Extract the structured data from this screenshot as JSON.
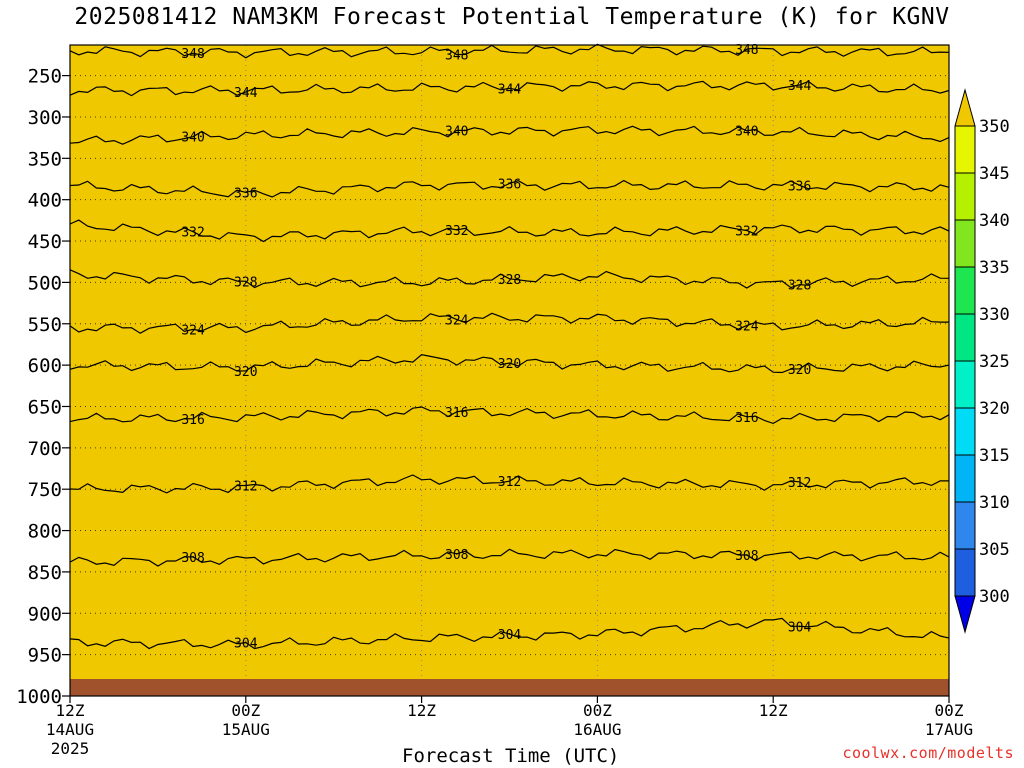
{
  "title": "2025081412 NAM3KM Forecast Potential Temperature (K) for KGNV",
  "credit": "coolwx.com/modelts",
  "chart_data": {
    "type": "heatmap",
    "title": "2025081412 NAM3KM Forecast Potential Temperature (K) for KGNV",
    "xlabel": "Forecast Time (UTC)",
    "ylabel": "",
    "ylim": [
      1000,
      200
    ],
    "xlim_hours": [
      0,
      60
    ],
    "y_ticks": [
      250,
      300,
      350,
      400,
      450,
      500,
      550,
      600,
      650,
      700,
      750,
      800,
      850,
      900,
      950,
      1000
    ],
    "x_ticks": [
      {
        "hour": 0,
        "lines": [
          "12Z",
          "14AUG",
          "2025"
        ]
      },
      {
        "hour": 12,
        "lines": [
          "00Z",
          "15AUG"
        ]
      },
      {
        "hour": 24,
        "lines": [
          "12Z"
        ]
      },
      {
        "hour": 36,
        "lines": [
          "00Z",
          "16AUG"
        ]
      },
      {
        "hour": 48,
        "lines": [
          "12Z"
        ]
      },
      {
        "hour": 60,
        "lines": [
          "00Z",
          "17AUG"
        ]
      }
    ],
    "colorbar": {
      "levels": [
        300,
        305,
        310,
        315,
        320,
        325,
        330,
        335,
        340,
        345,
        350
      ],
      "colors": [
        "#0000e6",
        "#1e5fe0",
        "#2f86ec",
        "#00b4f5",
        "#00dcf5",
        "#00f0c8",
        "#00e682",
        "#1ee650",
        "#82e61e",
        "#b4f000",
        "#e6f500",
        "#ffff00",
        "#f0c800"
      ],
      "extend": "both"
    },
    "series": [
      {
        "name": "348",
        "level": 348,
        "values": [
          {
            "p": 220,
            "t": 0
          },
          {
            "p": 222,
            "t": 12
          },
          {
            "p": 221,
            "t": 24
          },
          {
            "p": 218,
            "t": 36
          },
          {
            "p": 220,
            "t": 48
          },
          {
            "p": 222,
            "t": 60
          }
        ]
      },
      {
        "name": "344",
        "level": 344,
        "values": [
          {
            "p": 268,
            "t": 0
          },
          {
            "p": 268,
            "t": 12
          },
          {
            "p": 265,
            "t": 24
          },
          {
            "p": 262,
            "t": 36
          },
          {
            "p": 262,
            "t": 48
          },
          {
            "p": 268,
            "t": 60
          }
        ]
      },
      {
        "name": "340",
        "level": 340,
        "values": [
          {
            "p": 330,
            "t": 0
          },
          {
            "p": 322,
            "t": 12
          },
          {
            "p": 318,
            "t": 24
          },
          {
            "p": 316,
            "t": 36
          },
          {
            "p": 318,
            "t": 48
          },
          {
            "p": 325,
            "t": 60
          }
        ]
      },
      {
        "name": "336",
        "level": 336,
        "values": [
          {
            "p": 383,
            "t": 0
          },
          {
            "p": 393,
            "t": 12
          },
          {
            "p": 382,
            "t": 24
          },
          {
            "p": 383,
            "t": 36
          },
          {
            "p": 383,
            "t": 48
          },
          {
            "p": 385,
            "t": 60
          }
        ]
      },
      {
        "name": "332",
        "level": 332,
        "values": [
          {
            "p": 430,
            "t": 0
          },
          {
            "p": 445,
            "t": 12
          },
          {
            "p": 438,
            "t": 24
          },
          {
            "p": 440,
            "t": 36
          },
          {
            "p": 435,
            "t": 48
          },
          {
            "p": 438,
            "t": 60
          }
        ]
      },
      {
        "name": "328",
        "level": 328,
        "values": [
          {
            "p": 490,
            "t": 0
          },
          {
            "p": 500,
            "t": 12
          },
          {
            "p": 500,
            "t": 24
          },
          {
            "p": 492,
            "t": 36
          },
          {
            "p": 502,
            "t": 48
          },
          {
            "p": 495,
            "t": 60
          }
        ]
      },
      {
        "name": "324",
        "level": 324,
        "values": [
          {
            "p": 555,
            "t": 0
          },
          {
            "p": 555,
            "t": 12
          },
          {
            "p": 543,
            "t": 24
          },
          {
            "p": 543,
            "t": 36
          },
          {
            "p": 553,
            "t": 48
          },
          {
            "p": 548,
            "t": 60
          }
        ]
      },
      {
        "name": "320",
        "level": 320,
        "values": [
          {
            "p": 600,
            "t": 0
          },
          {
            "p": 603,
            "t": 12
          },
          {
            "p": 592,
            "t": 24
          },
          {
            "p": 600,
            "t": 36
          },
          {
            "p": 605,
            "t": 48
          },
          {
            "p": 600,
            "t": 60
          }
        ]
      },
      {
        "name": "316",
        "level": 316,
        "values": [
          {
            "p": 665,
            "t": 0
          },
          {
            "p": 663,
            "t": 12
          },
          {
            "p": 655,
            "t": 24
          },
          {
            "p": 660,
            "t": 36
          },
          {
            "p": 665,
            "t": 48
          },
          {
            "p": 660,
            "t": 60
          }
        ]
      },
      {
        "name": "312",
        "level": 312,
        "values": [
          {
            "p": 750,
            "t": 0
          },
          {
            "p": 748,
            "t": 12
          },
          {
            "p": 738,
            "t": 24
          },
          {
            "p": 742,
            "t": 36
          },
          {
            "p": 745,
            "t": 48
          },
          {
            "p": 740,
            "t": 60
          }
        ]
      },
      {
        "name": "308",
        "level": 308,
        "values": [
          {
            "p": 838,
            "t": 0
          },
          {
            "p": 835,
            "t": 12
          },
          {
            "p": 830,
            "t": 24
          },
          {
            "p": 828,
            "t": 36
          },
          {
            "p": 830,
            "t": 48
          },
          {
            "p": 832,
            "t": 60
          }
        ]
      },
      {
        "name": "304",
        "level": 304,
        "values": [
          {
            "p": 935,
            "t": 0
          },
          {
            "p": 938,
            "t": 12
          },
          {
            "p": 930,
            "t": 24
          },
          {
            "p": 925,
            "t": 36
          },
          {
            "p": 910,
            "t": 48
          },
          {
            "p": 930,
            "t": 60
          }
        ]
      }
    ]
  }
}
